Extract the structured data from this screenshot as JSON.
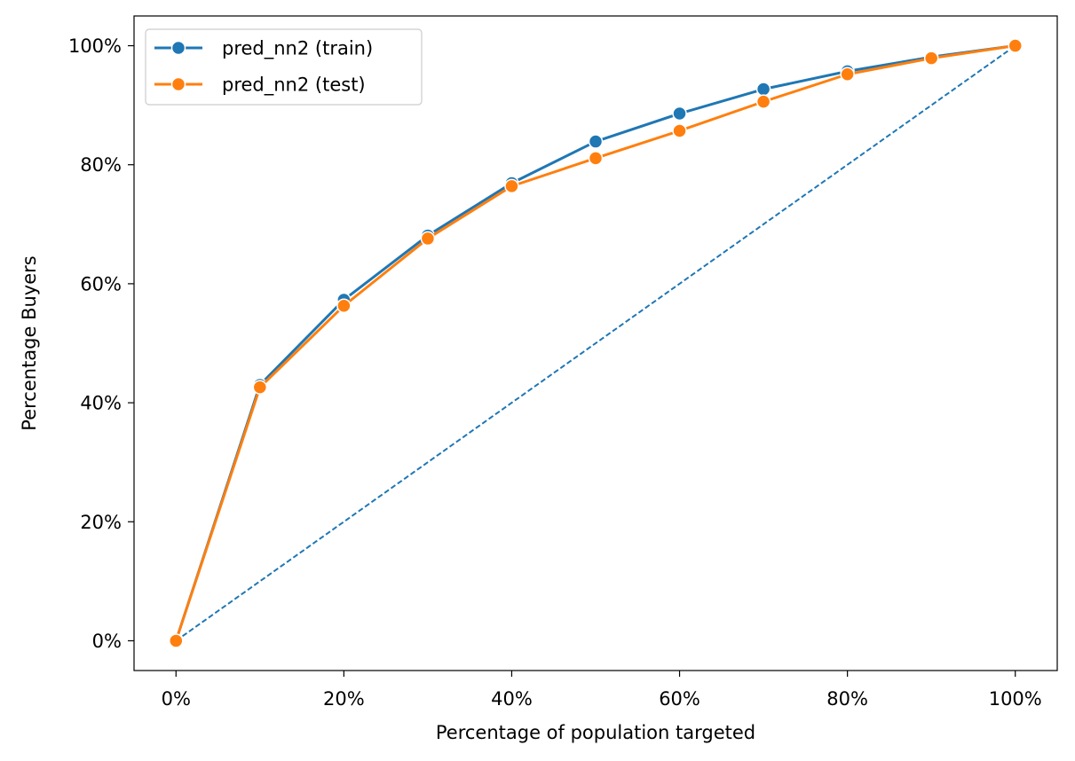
{
  "chart_data": {
    "type": "line",
    "xlabel": "Percentage of population targeted",
    "ylabel": "Percentage Buyers",
    "xlim": [
      -0.05,
      1.05
    ],
    "ylim": [
      -0.05,
      1.05
    ],
    "x_ticks": [
      0,
      0.2,
      0.4,
      0.6,
      0.8,
      1.0
    ],
    "x_tick_labels": [
      "0%",
      "20%",
      "40%",
      "60%",
      "80%",
      "100%"
    ],
    "y_ticks": [
      0,
      0.2,
      0.4,
      0.6,
      0.8,
      1.0
    ],
    "y_tick_labels": [
      "0%",
      "20%",
      "40%",
      "60%",
      "80%",
      "100%"
    ],
    "grid": false,
    "legend_position": "top-left",
    "x": [
      0,
      0.1,
      0.2,
      0.3,
      0.4,
      0.5,
      0.6,
      0.7,
      0.8,
      0.9,
      1.0
    ],
    "series": [
      {
        "name": "pred_nn2 (train)",
        "color": "#1f77b4",
        "values": [
          0,
          0.43,
          0.573,
          0.681,
          0.769,
          0.839,
          0.886,
          0.927,
          0.957,
          0.981,
          1.0
        ]
      },
      {
        "name": "pred_nn2 (test)",
        "color": "#ff7f0e",
        "values": [
          0,
          0.426,
          0.563,
          0.676,
          0.764,
          0.811,
          0.857,
          0.906,
          0.952,
          0.979,
          1.0
        ]
      }
    ],
    "reference_line": {
      "style": "dashed",
      "color": "#1f77b4",
      "x": [
        0,
        1.0
      ],
      "values": [
        0,
        1.0
      ]
    }
  }
}
